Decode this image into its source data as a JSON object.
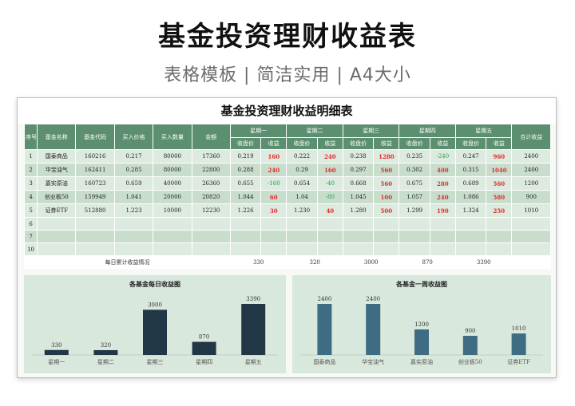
{
  "header": {
    "title": "基金投资理财收益表",
    "subtitle": "表格模板 | 简洁实用 | A4大小"
  },
  "sheet": {
    "title": "基金投资理财收益明细表",
    "columns": {
      "seq": "序号",
      "name": "基金名称",
      "code": "基金代码",
      "price": "买入价格",
      "qty": "买入数量",
      "amount": "金额",
      "total": "合计收益",
      "days": [
        "星期一",
        "星期二",
        "星期三",
        "星期四",
        "星期五"
      ],
      "close": "收盘价",
      "gain": "收益"
    },
    "rows": [
      {
        "seq": "1",
        "name": "国泰商品",
        "code": "160216",
        "price": "0.217",
        "qty": "80000",
        "amount": "17360",
        "d": [
          [
            "0.219",
            "160"
          ],
          [
            "0.222",
            "240"
          ],
          [
            "0.238",
            "1280"
          ],
          [
            "0.235",
            "-240"
          ],
          [
            "0.247",
            "960"
          ]
        ],
        "total": "2400"
      },
      {
        "seq": "2",
        "name": "华宝油气",
        "code": "162411",
        "price": "0.285",
        "qty": "80000",
        "amount": "22800",
        "d": [
          [
            "0.288",
            "240"
          ],
          [
            "0.29",
            "160"
          ],
          [
            "0.297",
            "560"
          ],
          [
            "0.302",
            "400"
          ],
          [
            "0.315",
            "1040"
          ]
        ],
        "total": "2400"
      },
      {
        "seq": "3",
        "name": "嘉实原油",
        "code": "160723",
        "price": "0.659",
        "qty": "40000",
        "amount": "26360",
        "d": [
          [
            "0.655",
            "-160"
          ],
          [
            "0.654",
            "-40"
          ],
          [
            "0.668",
            "560"
          ],
          [
            "0.675",
            "280"
          ],
          [
            "0.689",
            "560"
          ]
        ],
        "total": "1200"
      },
      {
        "seq": "4",
        "name": "创业板50",
        "code": "159949",
        "price": "1.041",
        "qty": "20000",
        "amount": "20820",
        "d": [
          [
            "1.044",
            "60"
          ],
          [
            "1.04",
            "-80"
          ],
          [
            "1.045",
            "100"
          ],
          [
            "1.057",
            "240"
          ],
          [
            "1.086",
            "580"
          ]
        ],
        "total": "900"
      },
      {
        "seq": "5",
        "name": "证券ETF",
        "code": "512880",
        "price": "1.223",
        "qty": "10000",
        "amount": "12230",
        "d": [
          [
            "1.226",
            "30"
          ],
          [
            "1.230",
            "40"
          ],
          [
            "1.280",
            "500"
          ],
          [
            "1.299",
            "190"
          ],
          [
            "1.324",
            "250"
          ]
        ],
        "total": "1010"
      }
    ],
    "empty_rows": [
      "6",
      "7",
      "10"
    ],
    "daily_total_label": "每日累计收益情况",
    "daily_totals": [
      "330",
      "320",
      "3000",
      "870",
      "3390"
    ]
  },
  "colors": {
    "header_green": "#5b8f6f",
    "bar_dark": "#223746",
    "bar_steel": "#3e6c82",
    "gain_red": "#e02b2b",
    "loss_green": "#24a148"
  },
  "chart_data": [
    {
      "type": "bar",
      "title": "各基金每日收益图",
      "categories": [
        "星期一",
        "星期二",
        "星期三",
        "星期四",
        "星期五"
      ],
      "values": [
        330,
        320,
        3000,
        870,
        3390
      ],
      "ylim": [
        0,
        3390
      ]
    },
    {
      "type": "bar",
      "title": "各基金一周收益图",
      "categories": [
        "国泰商品",
        "华宝油气",
        "嘉实原油",
        "创业板50",
        "证券ETF"
      ],
      "values": [
        2400,
        2400,
        1200,
        900,
        1010
      ],
      "ylim": [
        0,
        2400
      ]
    }
  ]
}
